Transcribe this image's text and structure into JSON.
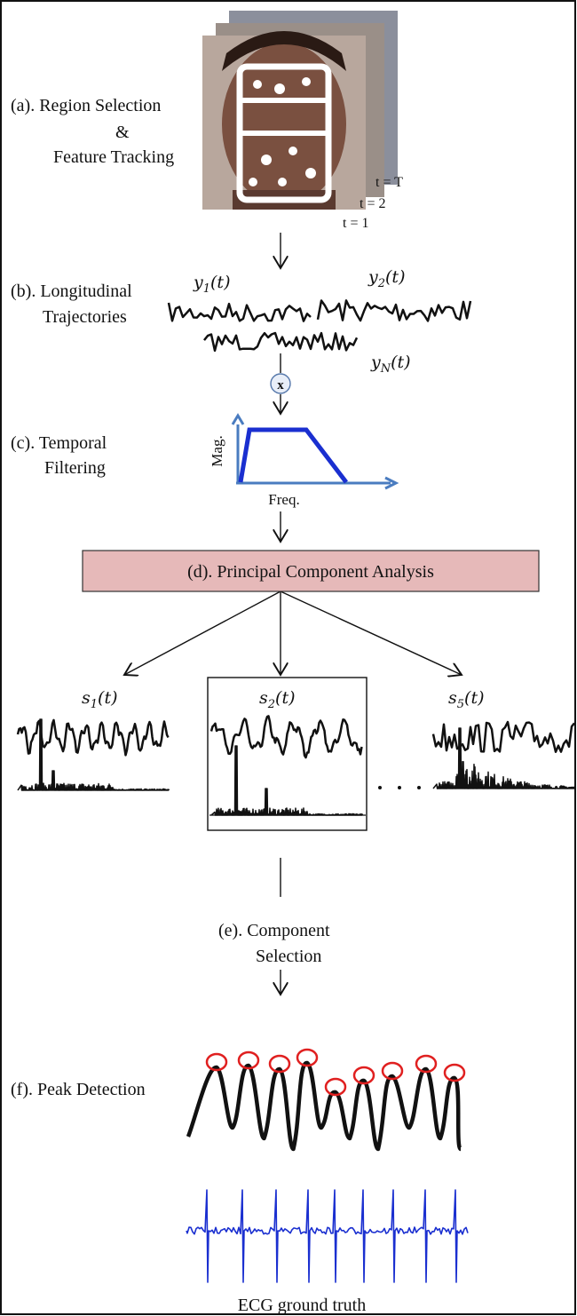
{
  "region_selection": {
    "label": [
      "(a).  Region Selection",
      "&",
      "Feature Tracking"
    ],
    "frames": [
      "t = T",
      "t = 2",
      "t = 1"
    ]
  },
  "trajectories": {
    "label": [
      "(b).  Longitudinal",
      "Trajectories"
    ],
    "signals": [
      {
        "base": "y",
        "sub": "1",
        "arg": "(t)"
      },
      {
        "base": "y",
        "sub": "2",
        "arg": "(t)"
      },
      {
        "base": "y",
        "sub": "N",
        "arg": "(t)"
      }
    ],
    "operator": "x"
  },
  "temporal_filtering": {
    "label": [
      "(c). Temporal",
      "Filtering"
    ],
    "y_axis": "Mag.",
    "x_axis": "Freq."
  },
  "pca": {
    "label": "(d).  Principal Component Analysis",
    "components": [
      {
        "base": "s",
        "sub": "1",
        "arg": "(t)"
      },
      {
        "base": "s",
        "sub": "2",
        "arg": "(t)"
      },
      {
        "base": "s",
        "sub": "5",
        "arg": "(t)"
      }
    ]
  },
  "component_selection": {
    "label": [
      "(e).  Component",
      "Selection"
    ]
  },
  "peak_detection": {
    "label": "(f). Peak Detection",
    "ecg_label": "ECG ground truth"
  }
}
